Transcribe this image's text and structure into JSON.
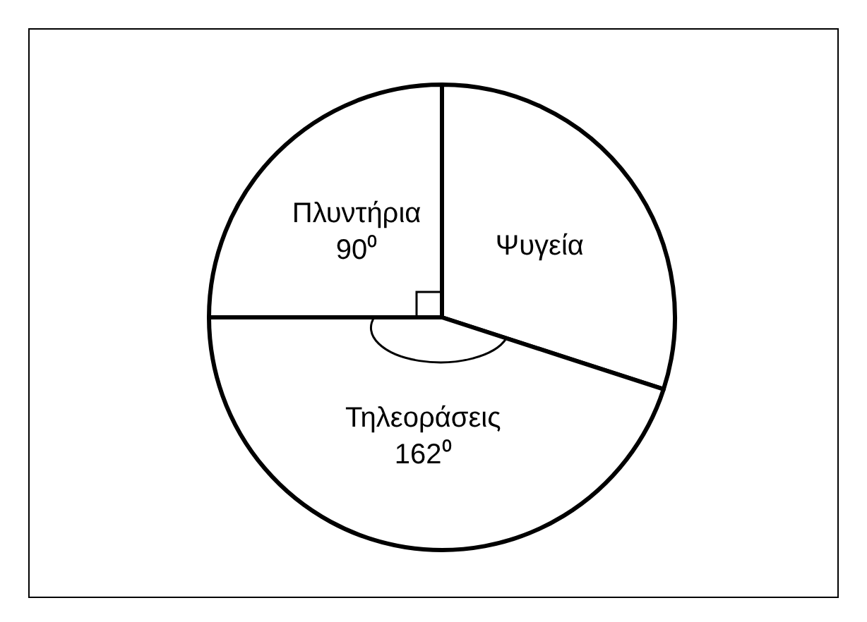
{
  "chart_data": {
    "type": "pie",
    "categories": [
      "Ψυγεία",
      "Τηλεοράσεις",
      "Πλυντήρια"
    ],
    "values": [
      108,
      162,
      90
    ],
    "colors": [
      "#ffffff",
      "#ffffff",
      "#ffffff"
    ],
    "value_labels": [
      null,
      "162⁰",
      "90⁰"
    ]
  }
}
